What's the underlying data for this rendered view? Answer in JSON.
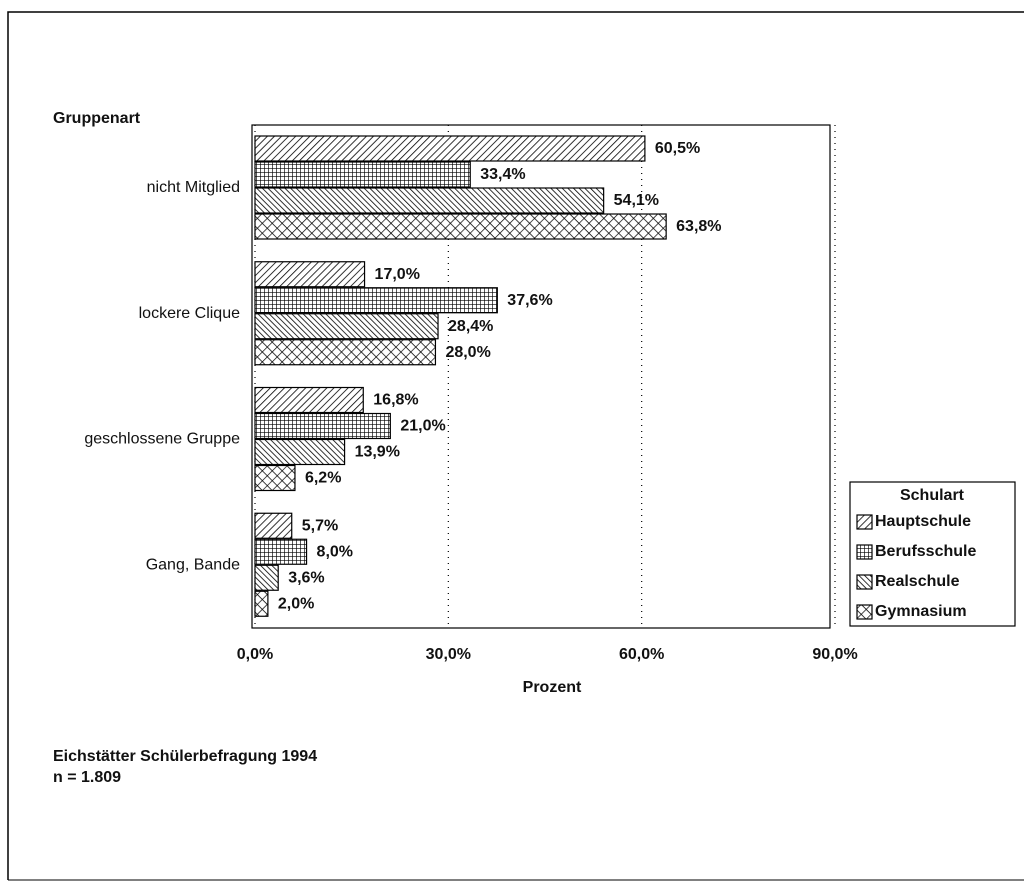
{
  "chart_data": {
    "type": "barh",
    "y_label": "Gruppenart",
    "x_label": "Prozent",
    "legend_title": "Schulart",
    "legend": "right",
    "grid": true,
    "categories": [
      "nicht Mitglied",
      "lockere Clique",
      "geschlossene Gruppe",
      "Gang, Bande"
    ],
    "series": [
      {
        "name": "Hauptschule",
        "color": "#000000",
        "pattern": "diagonal",
        "values": [
          60.5,
          17.0,
          16.8,
          5.7
        ],
        "value_labels": [
          "60,5%",
          "17,0%",
          "16,8%",
          "5,7%"
        ]
      },
      {
        "name": "Berufsschule",
        "color": "#000000",
        "pattern": "grid",
        "values": [
          33.4,
          37.6,
          21.0,
          8.0
        ],
        "value_labels": [
          "33,4%",
          "37,6%",
          "21,0%",
          "8,0%"
        ]
      },
      {
        "name": "Realschule",
        "color": "#000000",
        "pattern": "backdiagonal",
        "values": [
          54.1,
          28.4,
          13.9,
          3.6
        ],
        "value_labels": [
          "54,1%",
          "28,4%",
          "13,9%",
          "3,6%"
        ]
      },
      {
        "name": "Gymnasium",
        "color": "#000000",
        "pattern": "crosshatch",
        "values": [
          63.8,
          28.0,
          6.2,
          2.0
        ],
        "value_labels": [
          "63,8%",
          "28,0%",
          "6,2%",
          "2,0%"
        ]
      }
    ],
    "xlim": [
      0,
      90
    ],
    "xticks": [
      {
        "value": 0,
        "label": "0,0%"
      },
      {
        "value": 30,
        "label": "30,0%"
      },
      {
        "value": 60,
        "label": "60,0%"
      },
      {
        "value": 90,
        "label": "90,0%"
      }
    ],
    "notes": [
      "Eichstätter Schülerbefragung 1994",
      "n = 1.809"
    ]
  }
}
